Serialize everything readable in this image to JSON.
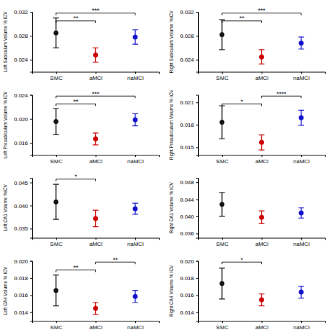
{
  "chart_data": [
    {
      "type": "dot",
      "ylabel": "Left Subiculum Volume % ICV",
      "categories": [
        "SMC",
        "aMCI",
        "naMCI"
      ],
      "values": [
        0.0285,
        0.0248,
        0.0278
      ],
      "errors": [
        0.0025,
        0.0012,
        0.0012
      ],
      "colors": [
        "#111111",
        "#cc0000",
        "#1111cc"
      ],
      "ylim": [
        0.022,
        0.032
      ],
      "yticks": [
        0.024,
        0.028,
        0.032
      ],
      "annotations": [
        {
          "from": "SMC",
          "to": "aMCI",
          "text": "**"
        },
        {
          "from": "SMC",
          "to": "naMCI",
          "text": "***"
        }
      ]
    },
    {
      "type": "dot",
      "ylabel": "Left Presubiculum Volume % ICV",
      "categories": [
        "SMC",
        "aMCI",
        "naMCI"
      ],
      "values": [
        0.01955,
        0.01665,
        0.01985
      ],
      "errors": [
        0.0022,
        0.001,
        0.001
      ],
      "colors": [
        "#111111",
        "#cc0000",
        "#1111cc"
      ],
      "ylim": [
        0.014,
        0.024
      ],
      "yticks": [
        0.016,
        {
          "value": 0.02,
          "label": "0.020"
        },
        0.024
      ],
      "annotations": [
        {
          "from": "SMC",
          "to": "aMCI",
          "text": "**"
        },
        {
          "from": "SMC",
          "to": "naMCI",
          "text": "***"
        }
      ]
    },
    {
      "type": "dot",
      "ylabel": "Left CA1 Volume %ICV",
      "categories": [
        "SMC",
        "aMCI",
        "naMCI"
      ],
      "values": [
        0.0408,
        0.0372,
        0.0393
      ],
      "errors": [
        0.0038,
        0.0018,
        0.0012
      ],
      "colors": [
        "#111111",
        "#cc0000",
        "#1111cc"
      ],
      "ylim": [
        0.033,
        0.046
      ],
      "yticks": [
        0.035,
        {
          "value": 0.04,
          "label": "0.040"
        },
        0.045
      ],
      "annotations": [
        {
          "from": "SMC",
          "to": "aMCI",
          "text": "*"
        }
      ]
    },
    {
      "type": "dot",
      "ylabel": "Left CA4 Volume % ICV",
      "categories": [
        "SMC",
        "aMCI",
        "naMCI"
      ],
      "values": [
        0.01655,
        0.01445,
        0.01585
      ],
      "errors": [
        0.0018,
        0.0007,
        0.0007
      ],
      "colors": [
        "#111111",
        "#cc0000",
        "#1111cc"
      ],
      "ylim": [
        0.013,
        0.02
      ],
      "yticks": [
        0.014,
        0.016,
        0.018,
        {
          "value": 0.02,
          "label": "0.020"
        }
      ],
      "annotations": [
        {
          "from": "SMC",
          "to": "aMCI",
          "text": "**"
        },
        {
          "from": "aMCI",
          "to": "naMCI",
          "text": "**"
        }
      ]
    },
    {
      "type": "dot",
      "ylabel": "Right Subiculum Volume %ICV",
      "categories": [
        "SMC",
        "aMCI",
        "naMCI"
      ],
      "values": [
        0.0282,
        0.0245,
        0.0268
      ],
      "errors": [
        0.0025,
        0.0012,
        0.001
      ],
      "colors": [
        "#111111",
        "#cc0000",
        "#1111cc"
      ],
      "ylim": [
        0.022,
        0.032
      ],
      "yticks": [
        0.024,
        0.028,
        0.032
      ],
      "annotations": [
        {
          "from": "SMC",
          "to": "aMCI",
          "text": "**"
        },
        {
          "from": "SMC",
          "to": "naMCI",
          "text": "***"
        }
      ]
    },
    {
      "type": "dot",
      "ylabel": "Right Presubiculum Volume % ICV",
      "categories": [
        "SMC",
        "aMCI",
        "naMCI"
      ],
      "values": [
        0.01835,
        0.01565,
        0.01895
      ],
      "errors": [
        0.0022,
        0.001,
        0.001
      ],
      "colors": [
        "#111111",
        "#cc0000",
        "#1111cc"
      ],
      "ylim": [
        0.014,
        0.022
      ],
      "yticks": [
        0.015,
        0.018,
        0.021
      ],
      "annotations": [
        {
          "from": "SMC",
          "to": "aMCI",
          "text": "*"
        },
        {
          "from": "aMCI",
          "to": "naMCI",
          "text": "****"
        }
      ]
    },
    {
      "type": "dot",
      "ylabel": "Right CA1 Volume % ICV",
      "categories": [
        "SMC",
        "aMCI",
        "naMCI"
      ],
      "values": [
        0.0428,
        0.0398,
        0.0408
      ],
      "errors": [
        0.0028,
        0.0015,
        0.0012
      ],
      "colors": [
        "#111111",
        "#cc0000",
        "#1111cc"
      ],
      "ylim": [
        0.035,
        0.049
      ],
      "yticks": [
        0.036,
        {
          "value": 0.04,
          "label": "0.040"
        },
        0.044,
        0.048
      ],
      "annotations": []
    },
    {
      "type": "dot",
      "ylabel": "Right CA4 Volume % ICV",
      "categories": [
        "SMC",
        "aMCI",
        "naMCI"
      ],
      "values": [
        0.01735,
        0.01545,
        0.01635
      ],
      "errors": [
        0.0018,
        0.0007,
        0.0007
      ],
      "colors": [
        "#111111",
        "#cc0000",
        "#1111cc"
      ],
      "ylim": [
        0.013,
        0.02
      ],
      "yticks": [
        0.014,
        0.016,
        0.018,
        {
          "value": 0.02,
          "label": "0.020"
        }
      ],
      "annotations": [
        {
          "from": "SMC",
          "to": "aMCI",
          "text": "*"
        }
      ]
    }
  ]
}
